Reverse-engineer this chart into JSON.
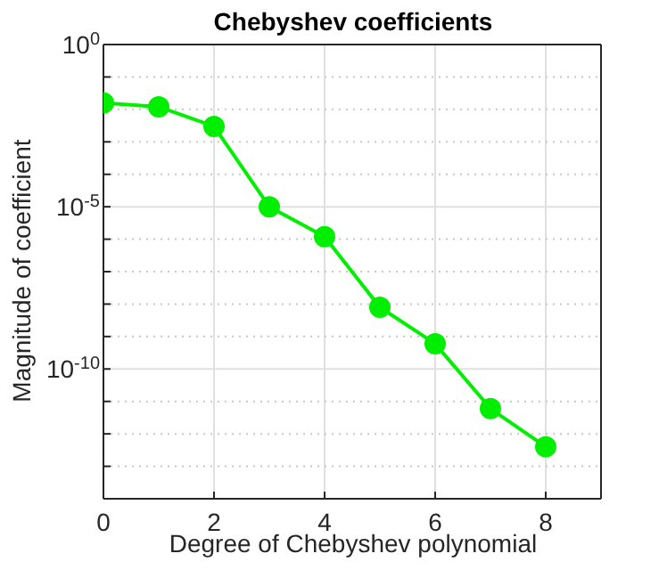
{
  "chart_data": {
    "type": "line",
    "title": "Chebyshev coefficients",
    "xlabel": "Degree of Chebyshev polynomial",
    "ylabel": "Magnitude of coefficient",
    "x": [
      0,
      1,
      2,
      3,
      4,
      5,
      6,
      7,
      8
    ],
    "series": [
      {
        "color": "#00ee00",
        "values": [
          0.016,
          0.012,
          0.003,
          1e-05,
          1.2e-06,
          8e-09,
          6e-10,
          6e-12,
          4e-13
        ]
      }
    ],
    "log": "y",
    "xlim": [
      0,
      9
    ],
    "xticks": [
      0,
      2,
      4,
      6,
      8
    ],
    "ylim": [
      1e-14,
      1
    ],
    "yticks": [
      {
        "value": 1,
        "label": "10$^{0}$"
      },
      {
        "value": 0.1,
        "label": null
      },
      {
        "value": 0.01,
        "label": null
      },
      {
        "value": 0.001,
        "label": null
      },
      {
        "value": 0.0001,
        "label": null
      },
      {
        "value": 1e-05,
        "label": "10$^{-5}$"
      },
      {
        "value": 1e-06,
        "label": null
      },
      {
        "value": 1e-07,
        "label": null
      },
      {
        "value": 1e-08,
        "label": null
      },
      {
        "value": 1e-09,
        "label": null
      },
      {
        "value": 1e-10,
        "label": "10$^{-10}$"
      },
      {
        "value": 1e-11,
        "label": null
      },
      {
        "value": 1e-12,
        "label": null
      },
      {
        "value": 1e-13,
        "label": null
      },
      {
        "value": 1e-14,
        "label": null
      }
    ],
    "grid": true,
    "marker": "circle",
    "line_style": "solid",
    "legend": false
  }
}
